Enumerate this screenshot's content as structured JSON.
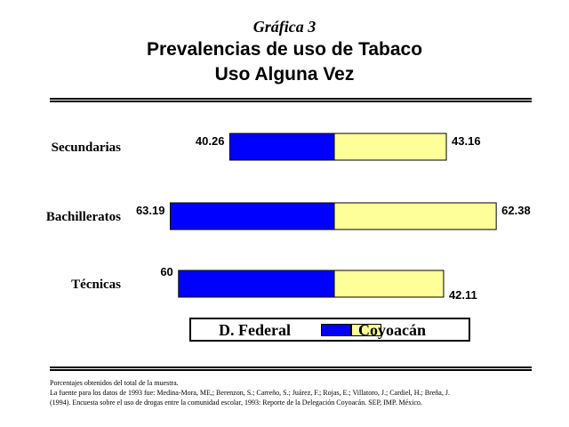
{
  "header": {
    "chart_number": "Gráfica 3",
    "title_line1": "Prevalencias de uso de Tabaco",
    "title_line2": "Uso Alguna Vez"
  },
  "chart_data": {
    "type": "bar",
    "orientation": "horizontal-diverging",
    "categories": [
      "Secundarias",
      "Bachilleratos",
      "Técnicas"
    ],
    "series": [
      {
        "name": "D. Federal",
        "values": [
          40.26,
          63.19,
          60
        ],
        "color": "#0000FF"
      },
      {
        "name": "Coyoacán",
        "values": [
          43.16,
          62.38,
          42.11
        ],
        "color": "#FFFF99"
      }
    ],
    "value_labels": [
      [
        "40.26",
        "63.19",
        "60"
      ],
      [
        "43.16",
        "62.38",
        "42.11"
      ]
    ],
    "grid": false,
    "legend_position": "bottom"
  },
  "legend": {
    "items": [
      {
        "label": "D. Federal",
        "color": "#0000FF"
      },
      {
        "label": "Coyoacán",
        "color": "#FFFF99"
      }
    ]
  },
  "footnotes": {
    "line1": "Porcentajes obtenidos del total de la muestra.",
    "line2": "La fuente para los datos de 1993 fue: Medina-Mora, ME,; Berenzon, S.; Carreño, S.; Juárez, F.; Rojas, E.; Villatoro, J.; Cardiel, H.; Breña, J.",
    "line3": "(1994). Encuesta sobre el uso de drogas entre la comunidad escolar, 1993: Reporte de la Delegación Coyoacán. SEP, IMP. México."
  }
}
